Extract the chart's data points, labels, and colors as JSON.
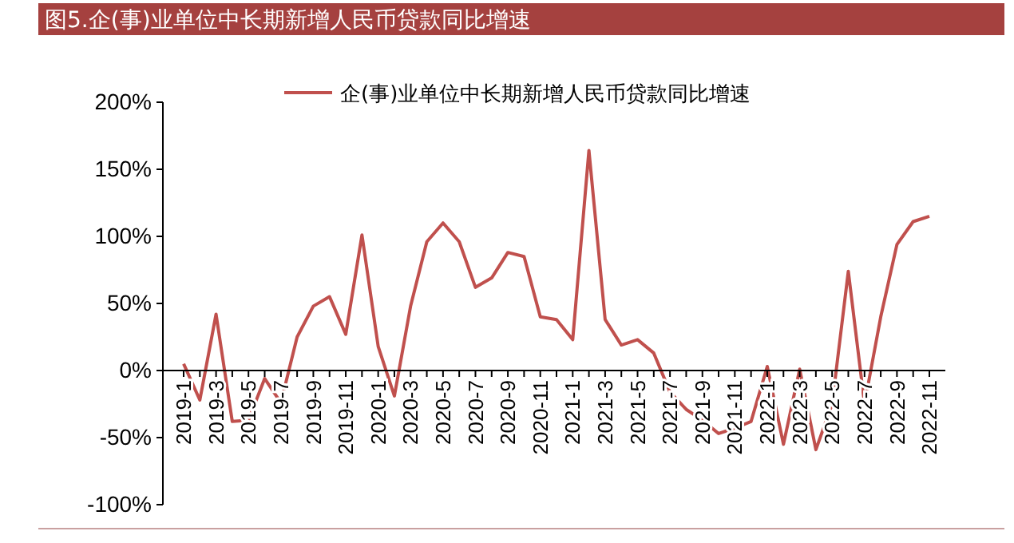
{
  "chart_data": {
    "type": "line",
    "title": "图5.企(事)业单位中长期新增人民币贷款同比增速",
    "categories": [
      "2019-1",
      null,
      "2019-3",
      null,
      "2019-5",
      null,
      "2019-7",
      null,
      "2019-9",
      null,
      "2019-11",
      null,
      "2020-1",
      null,
      "2020-3",
      null,
      "2020-5",
      null,
      "2020-7",
      null,
      "2020-9",
      null,
      "2020-11",
      null,
      "2021-1",
      null,
      "2021-3",
      null,
      "2021-5",
      null,
      "2021-7",
      null,
      "2021-9",
      null,
      "2021-11",
      null,
      "2022-1",
      null,
      "2022-3",
      null,
      "2022-5",
      null,
      "2022-7",
      null,
      "2022-9",
      null,
      "2022-11"
    ],
    "series": [
      {
        "name": "企(事)业单位中长期新增人民币贷款同比增速",
        "color": "#c0504d",
        "values": [
          5,
          -22,
          42,
          -38,
          -37,
          -6,
          -24,
          25,
          48,
          55,
          27,
          101,
          18,
          -19,
          48,
          96,
          110,
          96,
          62,
          69,
          88,
          85,
          40,
          38,
          23,
          164,
          38,
          19,
          23,
          13,
          -16,
          -29,
          -37,
          -47,
          -43,
          -38,
          3,
          -55,
          1,
          -59,
          -25,
          74,
          -25,
          40,
          94,
          111,
          115
        ]
      }
    ],
    "ylim": [
      -100,
      200
    ],
    "yticks": [
      {
        "value": -100,
        "label": "-100%"
      },
      {
        "value": -50,
        "label": "-50%"
      },
      {
        "value": 0,
        "label": "0%"
      },
      {
        "value": 50,
        "label": "50%"
      },
      {
        "value": 100,
        "label": "100%"
      },
      {
        "value": 150,
        "label": "150%"
      },
      {
        "value": 200,
        "label": "200%"
      }
    ],
    "legend": "top",
    "grid": false,
    "line_style": "solid",
    "marker": "none"
  }
}
